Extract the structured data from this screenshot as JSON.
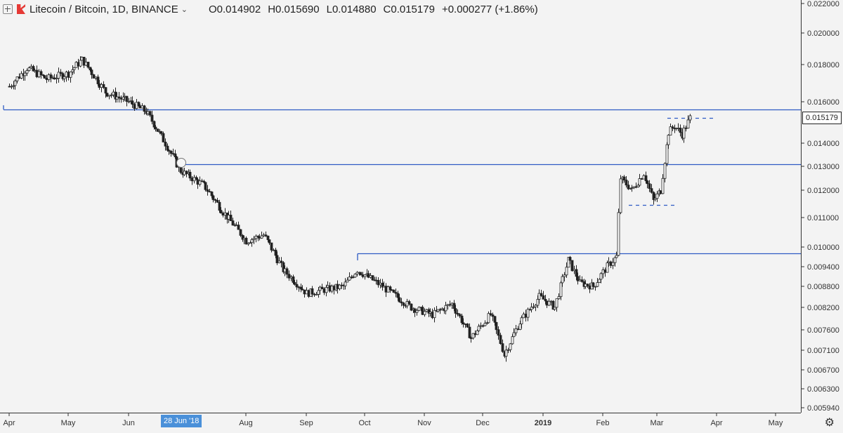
{
  "header": {
    "symbol": "Litecoin / Bitcoin, 1D, BINANCE",
    "open": "O0.014902",
    "high": "H0.015690",
    "low": "L0.014880",
    "close": "C0.015179",
    "change": "+0.000277 (+1.86%)"
  },
  "price_tag": "0.015179",
  "date_tag": "28 Jun '18",
  "colors": {
    "background": "#f3f3f3",
    "candle": "#222222",
    "level_line": "#2e5ac4",
    "date_tag": "#4a90d9"
  },
  "chart_data": {
    "type": "candlestick",
    "y_ticks": [
      "0.022000",
      "0.020000",
      "0.018000",
      "0.016000",
      "0.014000",
      "0.013000",
      "0.012000",
      "0.011000",
      "0.010000",
      "0.009400",
      "0.008800",
      "0.008200",
      "0.007600",
      "0.007100",
      "0.006700",
      "0.006300",
      "0.005940"
    ],
    "x_ticks": [
      "Apr",
      "May",
      "Jun",
      "Aug",
      "Sep",
      "Oct",
      "Nov",
      "Dec",
      "2019",
      "Feb",
      "Mar",
      "Apr",
      "May"
    ],
    "horizontal_levels": [
      0.0156,
      0.0131,
      0.0098
    ],
    "dashed_levels": [
      0.01518,
      0.01145
    ],
    "close_path": [
      {
        "t": "2018-04-01",
        "c": 0.0168
      },
      {
        "t": "2018-04-10",
        "c": 0.0178
      },
      {
        "t": "2018-04-20",
        "c": 0.0172
      },
      {
        "t": "2018-05-01",
        "c": 0.0175
      },
      {
        "t": "2018-05-08",
        "c": 0.0183
      },
      {
        "t": "2018-05-20",
        "c": 0.0165
      },
      {
        "t": "2018-06-01",
        "c": 0.016
      },
      {
        "t": "2018-06-10",
        "c": 0.0155
      },
      {
        "t": "2018-06-20",
        "c": 0.014
      },
      {
        "t": "2018-06-28",
        "c": 0.0128
      },
      {
        "t": "2018-07-10",
        "c": 0.0122
      },
      {
        "t": "2018-07-20",
        "c": 0.0112
      },
      {
        "t": "2018-08-01",
        "c": 0.0102
      },
      {
        "t": "2018-08-10",
        "c": 0.0104
      },
      {
        "t": "2018-08-20",
        "c": 0.0093
      },
      {
        "t": "2018-09-01",
        "c": 0.0086
      },
      {
        "t": "2018-09-10",
        "c": 0.0087
      },
      {
        "t": "2018-09-20",
        "c": 0.0088
      },
      {
        "t": "2018-09-27",
        "c": 0.0093
      },
      {
        "t": "2018-10-10",
        "c": 0.0088
      },
      {
        "t": "2018-10-25",
        "c": 0.0082
      },
      {
        "t": "2018-11-05",
        "c": 0.008
      },
      {
        "t": "2018-11-15",
        "c": 0.0083
      },
      {
        "t": "2018-11-25",
        "c": 0.0074
      },
      {
        "t": "2018-12-05",
        "c": 0.008
      },
      {
        "t": "2018-12-12",
        "c": 0.007
      },
      {
        "t": "2018-12-20",
        "c": 0.0078
      },
      {
        "t": "2018-12-30",
        "c": 0.0085
      },
      {
        "t": "2019-01-07",
        "c": 0.0082
      },
      {
        "t": "2019-01-14",
        "c": 0.0096
      },
      {
        "t": "2019-01-20",
        "c": 0.0089
      },
      {
        "t": "2019-01-27",
        "c": 0.0088
      },
      {
        "t": "2019-02-03",
        "c": 0.0094
      },
      {
        "t": "2019-02-08",
        "c": 0.0097
      },
      {
        "t": "2019-02-10",
        "c": 0.0125
      },
      {
        "t": "2019-02-16",
        "c": 0.012
      },
      {
        "t": "2019-02-22",
        "c": 0.0127
      },
      {
        "t": "2019-02-27",
        "c": 0.0116
      },
      {
        "t": "2019-03-03",
        "c": 0.012
      },
      {
        "t": "2019-03-07",
        "c": 0.0145
      },
      {
        "t": "2019-03-10",
        "c": 0.0148
      },
      {
        "t": "2019-03-14",
        "c": 0.0144
      },
      {
        "t": "2019-03-18",
        "c": 0.015179
      }
    ]
  }
}
